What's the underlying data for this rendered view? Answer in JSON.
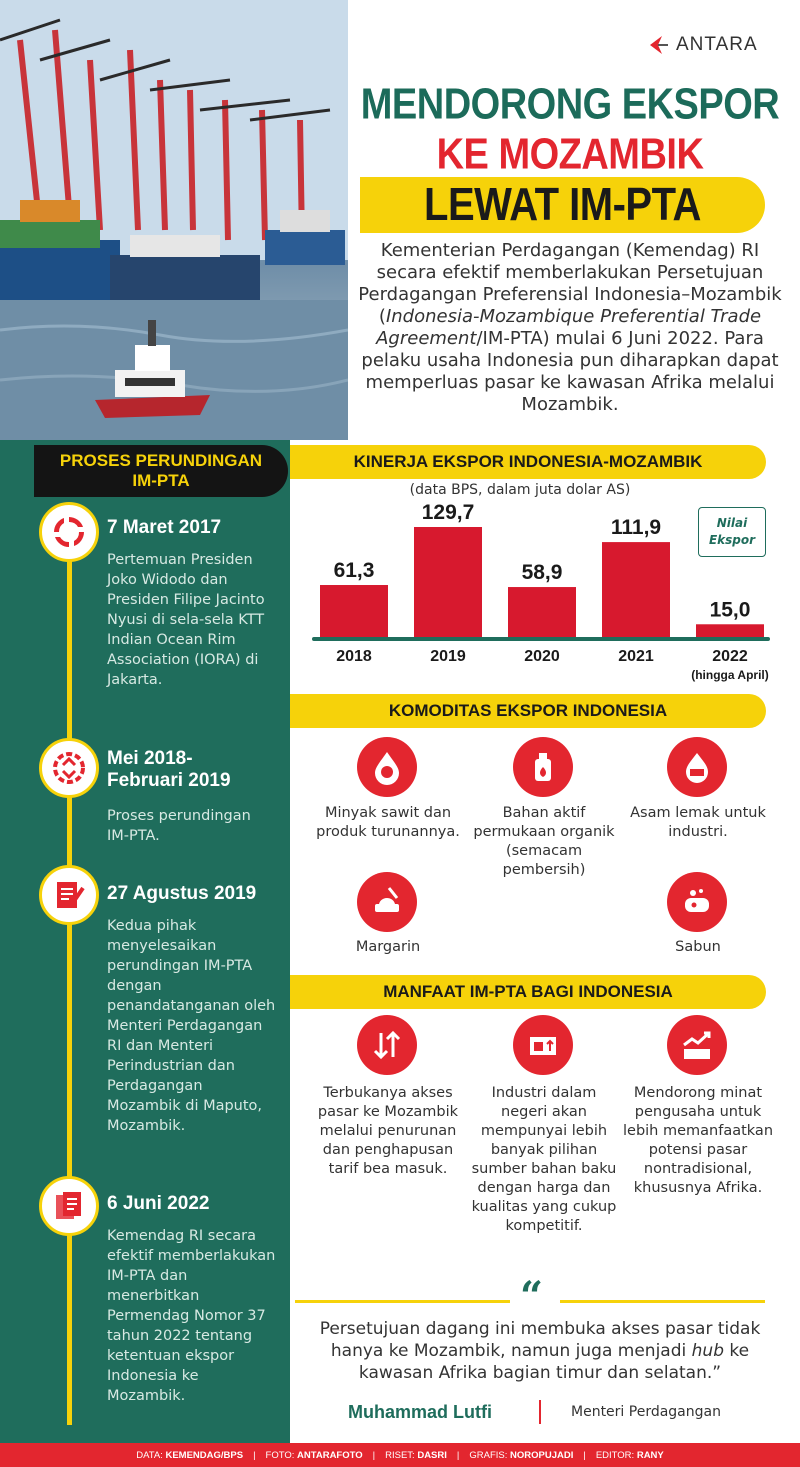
{
  "logo": {
    "text": "ANTARA"
  },
  "title": {
    "line1": "MENDORONG EKSPOR",
    "line2": "KE MOZAMBIK",
    "line3": "LEWAT IM-PTA"
  },
  "intro": {
    "part1": "Kementerian Perdagangan (Kemendag) RI secara efektif memberlakukan Persetujuan Perdagangan Preferensial Indonesia–Mozambik (",
    "italic": "Indonesia-Mozambique Preferential Trade Agreement",
    "part2": "/IM-PTA) mulai 6 Juni 2022. Para pelaku usaha Indonesia pun diharapkan  dapat memperluas pasar ke kawasan Afrika melalui Mozambik."
  },
  "timeline": {
    "title_line1": "PROSES PERUNDINGAN",
    "title_line2": "IM-PTA",
    "items": [
      {
        "date": "7 Maret 2017",
        "desc": "Pertemuan Presiden Joko Widodo dan Presiden Filipe Jacinto Nyusi di sela-sela KTT Indian Ocean Rim Association (IORA) di Jakarta.",
        "icon": "cycle-arrows-icon"
      },
      {
        "date_line1": "Mei 2018-",
        "date_line2": "Februari 2019",
        "desc": "Proses perundingan IM-PTA.",
        "icon": "negotiation-cycle-icon"
      },
      {
        "date": "27 Agustus 2019",
        "desc": "Kedua pihak menyelesaikan perundingan IM-PTA dengan penandatanganan oleh Menteri Perdagangan RI dan Menteri Perindustrian dan Perdagangan Mozambik di Maputo, Mozambik.",
        "icon": "document-sign-icon"
      },
      {
        "date": "6 Juni 2022",
        "desc": "Kemendag RI secara efektif memberlakukan IM-PTA dan menerbitkan Permendag Nomor 37 tahun 2022 tentang ketentuan ekspor Indonesia ke Mozambik.",
        "icon": "documents-icon"
      }
    ]
  },
  "export_section": {
    "title": "KINERJA EKSPOR INDONESIA-MOZAMBIK",
    "subtitle": "(data BPS, dalam juta dolar AS)",
    "legend_line1": "Nilai",
    "legend_line2": "Ekspor"
  },
  "chart_data": {
    "type": "bar",
    "categories": [
      "2018",
      "2019",
      "2020",
      "2021",
      "2022"
    ],
    "values": [
      61.3,
      129.7,
      58.9,
      111.9,
      15.0
    ],
    "value_labels": [
      "61,3",
      "129,7",
      "58,9",
      "111,9",
      "15,0"
    ],
    "category_note": "(hingga April)",
    "title": "KINERJA EKSPOR INDONESIA-MOZAMBIK",
    "subtitle": "(data BPS, dalam juta dolar AS)",
    "ylim": [
      0,
      140
    ],
    "grid": false,
    "bar_color": "#d7192e",
    "baseline_color": "#1f6d5c"
  },
  "commodities": {
    "title": "KOMODITAS EKSPOR INDONESIA",
    "items": [
      {
        "label": "Minyak sawit dan produk turunannya.",
        "icon": "palm-oil-drop-icon"
      },
      {
        "label": "Bahan aktif permukaan organik (semacam pembersih)",
        "icon": "detergent-bottle-icon"
      },
      {
        "label": "Asam lemak untuk industri.",
        "icon": "factory-drop-icon"
      },
      {
        "label": "Margarin",
        "icon": "margarine-icon"
      },
      {
        "label": "Sabun",
        "icon": "soap-icon"
      }
    ]
  },
  "benefits": {
    "title": "MANFAAT IM-PTA BAGI INDONESIA",
    "items": [
      {
        "label": "Terbukanya akses pasar ke Mozambik melalui penurunan dan penghapusan tarif bea masuk.",
        "icon": "tariff-arrows-icon"
      },
      {
        "label": "Industri dalam negeri akan mempunyai lebih banyak pilihan sumber bahan baku dengan harga dan kualitas yang cukup kompetitif.",
        "icon": "raw-material-icon"
      },
      {
        "label": "Mendorong minat pengusaha untuk lebih memanfaatkan potensi pasar nontradisional, khususnya Afrika.",
        "icon": "growth-chart-icon"
      }
    ]
  },
  "quote": {
    "mark": "“",
    "text_part1": "Persetujuan dagang ini membuka akses pasar tidak hanya ke Mozambik, namun juga menjadi ",
    "italic": "hub",
    "text_part2": " ke kawasan Afrika bagian timur dan selatan.”",
    "name": "Muhammad Lutfi",
    "role": "Menteri Perdagangan"
  },
  "footer": {
    "data_label": "DATA:",
    "data_value": "KEMENDAG/BPS",
    "foto_label": "FOTO:",
    "foto_value": "ANTARAFOTO",
    "riset_label": "RISET:",
    "riset_value": "DASRI",
    "grafis_label": "GRAFIS:",
    "grafis_value": "NOROPUJADI",
    "editor_label": "EDITOR:",
    "editor_value": "RANY"
  },
  "colors": {
    "green": "#1f6d5c",
    "red": "#e3262f",
    "yellow": "#f6d20a"
  }
}
